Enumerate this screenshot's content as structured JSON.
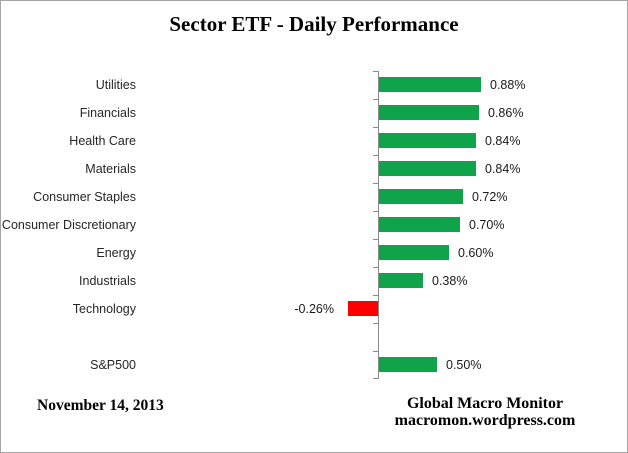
{
  "title": "Sector ETF - Daily Performance",
  "footer": {
    "date": "November 14, 2013",
    "attribution_line1": "Global Macro Monitor",
    "attribution_line2": "macromon.wordpress.com"
  },
  "colors": {
    "positive": "#10a44a",
    "negative": "#ff0000",
    "axis": "#8a8a8a",
    "label_text": "#262626"
  },
  "chart_data": {
    "type": "bar",
    "orientation": "horizontal",
    "title": "Sector ETF - Daily Performance",
    "value_unit": "percent",
    "gridlines": false,
    "x_axis_labels_visible": false,
    "data_labels": "outside-end",
    "categories": [
      "Utilities",
      "Financials",
      "Health Care",
      "Materials",
      "Consumer Staples",
      "Consumer Discretionary",
      "Energy",
      "Industrials",
      "Technology",
      "",
      "S&P500"
    ],
    "rows": [
      {
        "category": "Utilities",
        "value": 0.88,
        "label": "0.88%"
      },
      {
        "category": "Financials",
        "value": 0.86,
        "label": "0.86%"
      },
      {
        "category": "Health Care",
        "value": 0.84,
        "label": "0.84%"
      },
      {
        "category": "Materials",
        "value": 0.84,
        "label": "0.84%"
      },
      {
        "category": "Consumer Staples",
        "value": 0.72,
        "label": "0.72%"
      },
      {
        "category": "Consumer Discretionary",
        "value": 0.7,
        "label": "0.70%"
      },
      {
        "category": "Energy",
        "value": 0.6,
        "label": "0.60%"
      },
      {
        "category": "Industrials",
        "value": 0.38,
        "label": "0.38%"
      },
      {
        "category": "Technology",
        "value": -0.26,
        "label": "-0.26%"
      },
      {
        "category": "",
        "value": null,
        "label": ""
      },
      {
        "category": "S&P500",
        "value": 0.5,
        "label": "0.50%"
      }
    ]
  }
}
